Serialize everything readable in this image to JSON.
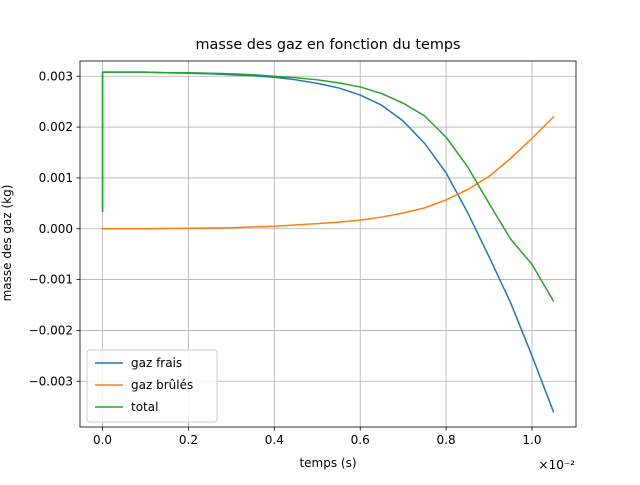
{
  "chart_data": {
    "type": "line",
    "title": "masse des gaz en fonction du temps",
    "xlabel": "temps (s)",
    "ylabel": "masse des gaz (kg)",
    "x_offset_text": "×10⁻²",
    "x_tick_labels": [
      "0.0",
      "0.2",
      "0.4",
      "0.6",
      "0.8",
      "1.0"
    ],
    "x_ticks": [
      0.0,
      0.002,
      0.004,
      0.006,
      0.008,
      0.01
    ],
    "y_tick_labels": [
      "−0.003",
      "−0.002",
      "−0.001",
      "0.000",
      "0.001",
      "0.002",
      "0.003"
    ],
    "y_ticks": [
      -0.003,
      -0.002,
      -0.001,
      0.0,
      0.001,
      0.002,
      0.003
    ],
    "xlim": [
      -0.000525,
      0.011025
    ],
    "ylim": [
      -0.0039,
      0.0033
    ],
    "grid": true,
    "legend_position": "lower left",
    "series": [
      {
        "name": "gaz frais",
        "color": "#1f77b4",
        "x": [
          0.0,
          0.0,
          3e-05,
          0.0005,
          0.001,
          0.0015,
          0.002,
          0.0025,
          0.003,
          0.0035,
          0.004,
          0.0045,
          0.005,
          0.0055,
          0.006,
          0.0065,
          0.007,
          0.0075,
          0.008,
          0.0085,
          0.009,
          0.0095,
          0.01,
          0.0105
        ],
        "y": [
          0.00035,
          0.00308,
          0.00308,
          0.00308,
          0.00308,
          0.00307,
          0.00306,
          0.00305,
          0.00303,
          0.00301,
          0.00298,
          0.00293,
          0.00286,
          0.00277,
          0.00263,
          0.00243,
          0.00212,
          0.00168,
          0.0011,
          0.00032,
          -0.00055,
          -0.00145,
          -0.0025,
          -0.0036
        ]
      },
      {
        "name": "gaz brûlés",
        "color": "#ff7f0e",
        "x": [
          0.0,
          0.001,
          0.002,
          0.003,
          0.004,
          0.005,
          0.0055,
          0.006,
          0.0065,
          0.007,
          0.0075,
          0.008,
          0.0085,
          0.009,
          0.0095,
          0.01,
          0.0105
        ],
        "y": [
          0.0,
          0.0,
          1e-05,
          2e-05,
          5e-05,
          0.0001,
          0.00013,
          0.00017,
          0.00023,
          0.00031,
          0.00041,
          0.00057,
          0.00077,
          0.00103,
          0.00138,
          0.00178,
          0.0022
        ]
      },
      {
        "name": "total",
        "color": "#2ca02c",
        "x": [
          0.0,
          0.0,
          3e-05,
          0.0005,
          0.001,
          0.0015,
          0.002,
          0.0025,
          0.003,
          0.0035,
          0.004,
          0.0045,
          0.005,
          0.0055,
          0.006,
          0.0065,
          0.007,
          0.0075,
          0.008,
          0.0085,
          0.009,
          0.0095,
          0.01,
          0.0105
        ],
        "y": [
          0.00035,
          0.00308,
          0.00308,
          0.00308,
          0.00308,
          0.00307,
          0.00307,
          0.00306,
          0.00305,
          0.00303,
          0.003,
          0.00297,
          0.00293,
          0.00287,
          0.00279,
          0.00266,
          0.00247,
          0.00222,
          0.0018,
          0.00122,
          0.0005,
          -0.0002,
          -0.0007,
          -0.00142
        ]
      }
    ]
  }
}
